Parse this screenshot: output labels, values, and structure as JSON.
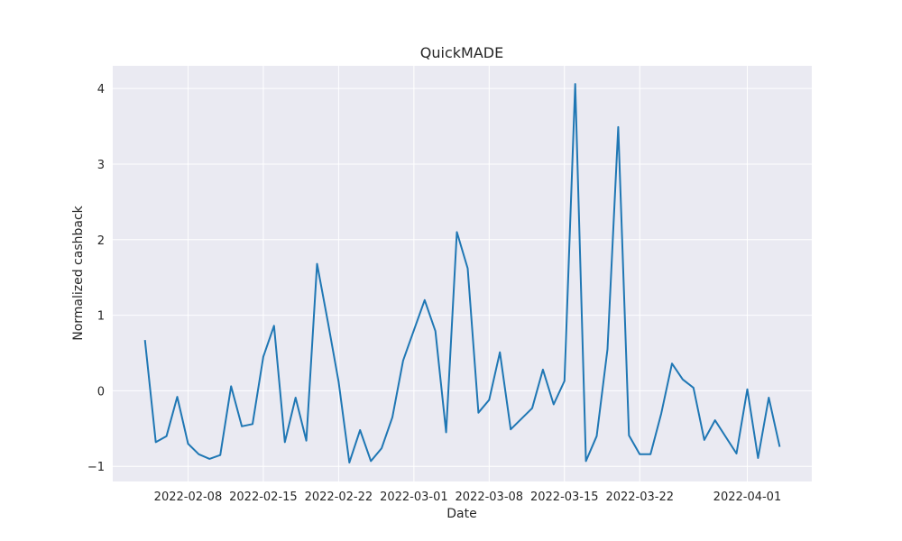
{
  "chart_data": {
    "type": "line",
    "title": "QuickMADE",
    "xlabel": "Date",
    "ylabel": "Normalized cashback",
    "x_ticks": [
      "2022-02-08",
      "2022-02-15",
      "2022-02-22",
      "2022-03-01",
      "2022-03-08",
      "2022-03-15",
      "2022-03-22",
      "2022-04-01"
    ],
    "y_ticks": [
      "4",
      "3",
      "2",
      "1",
      "0",
      "−1"
    ],
    "ylim": [
      -1.2,
      4.3
    ],
    "xlim": [
      "2022-02-01",
      "2022-04-07"
    ],
    "grid": true,
    "series": [
      {
        "color": "#1f77b4",
        "points": [
          [
            "2022-02-04",
            0.66
          ],
          [
            "2022-02-05",
            -0.68
          ],
          [
            "2022-02-06",
            -0.6
          ],
          [
            "2022-02-07",
            -0.08
          ],
          [
            "2022-02-08",
            -0.7
          ],
          [
            "2022-02-09",
            -0.84
          ],
          [
            "2022-02-10",
            -0.9
          ],
          [
            "2022-02-11",
            -0.85
          ],
          [
            "2022-02-12",
            0.06
          ],
          [
            "2022-02-13",
            -0.47
          ],
          [
            "2022-02-14",
            -0.44
          ],
          [
            "2022-02-15",
            0.45
          ],
          [
            "2022-02-16",
            0.86
          ],
          [
            "2022-02-17",
            -0.68
          ],
          [
            "2022-02-18",
            -0.09
          ],
          [
            "2022-02-19",
            -0.66
          ],
          [
            "2022-02-20",
            1.68
          ],
          [
            "2022-02-21",
            0.91
          ],
          [
            "2022-02-22",
            0.12
          ],
          [
            "2022-02-23",
            -0.95
          ],
          [
            "2022-02-24",
            -0.52
          ],
          [
            "2022-02-25",
            -0.93
          ],
          [
            "2022-02-26",
            -0.76
          ],
          [
            "2022-02-27",
            -0.35
          ],
          [
            "2022-02-28",
            0.4
          ],
          [
            "2022-03-01",
            0.8
          ],
          [
            "2022-03-02",
            1.2
          ],
          [
            "2022-03-03",
            0.79
          ],
          [
            "2022-03-04",
            -0.55
          ],
          [
            "2022-03-05",
            2.1
          ],
          [
            "2022-03-06",
            1.62
          ],
          [
            "2022-03-07",
            -0.29
          ],
          [
            "2022-03-08",
            -0.12
          ],
          [
            "2022-03-09",
            0.51
          ],
          [
            "2022-03-10",
            -0.51
          ],
          [
            "2022-03-11",
            -0.37
          ],
          [
            "2022-03-12",
            -0.23
          ],
          [
            "2022-03-13",
            0.28
          ],
          [
            "2022-03-14",
            -0.18
          ],
          [
            "2022-03-15",
            0.13
          ],
          [
            "2022-03-16",
            4.06
          ],
          [
            "2022-03-17",
            -0.93
          ],
          [
            "2022-03-18",
            -0.6
          ],
          [
            "2022-03-19",
            0.55
          ],
          [
            "2022-03-20",
            3.49
          ],
          [
            "2022-03-21",
            -0.59
          ],
          [
            "2022-03-22",
            -0.84
          ],
          [
            "2022-03-23",
            -0.84
          ],
          [
            "2022-03-24",
            -0.3
          ],
          [
            "2022-03-25",
            0.36
          ],
          [
            "2022-03-26",
            0.15
          ],
          [
            "2022-03-27",
            0.04
          ],
          [
            "2022-03-28",
            -0.65
          ],
          [
            "2022-03-29",
            -0.39
          ],
          [
            "2022-03-31",
            -0.83
          ],
          [
            "2022-04-01",
            0.02
          ],
          [
            "2022-04-02",
            -0.89
          ],
          [
            "2022-04-03",
            -0.09
          ],
          [
            "2022-04-04",
            -0.73
          ]
        ]
      }
    ]
  }
}
